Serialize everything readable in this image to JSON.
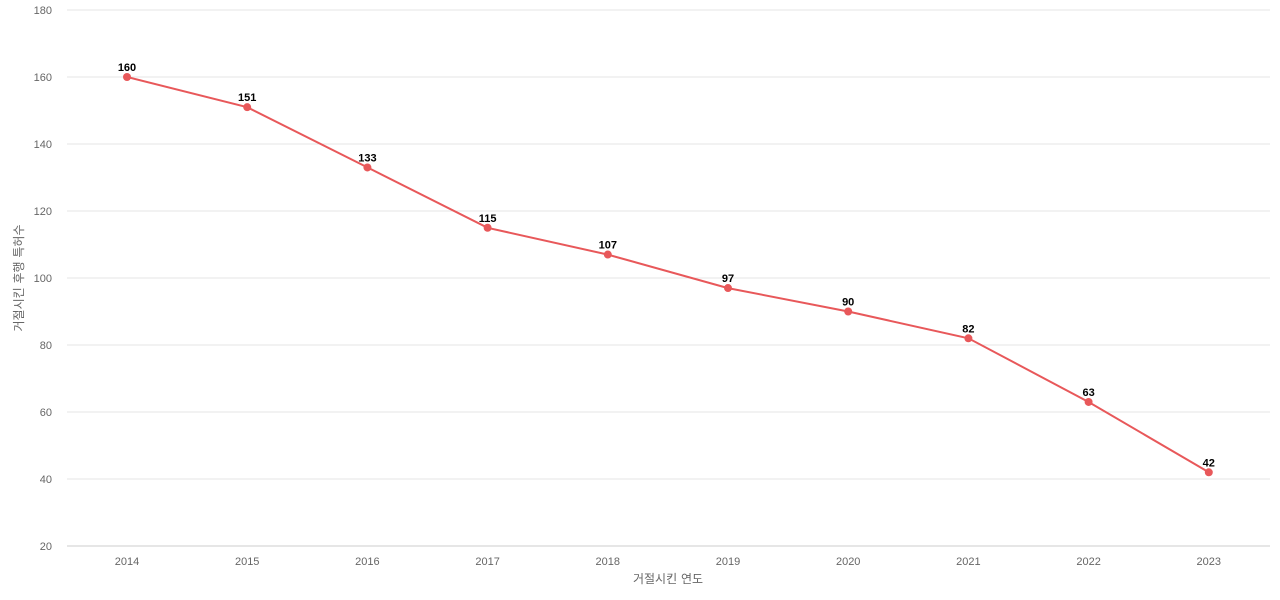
{
  "chart_data": {
    "type": "line",
    "title": "",
    "xlabel": "거절시킨 연도",
    "ylabel": "거절시킨 후행 특허수",
    "categories": [
      "2014",
      "2015",
      "2016",
      "2017",
      "2018",
      "2019",
      "2020",
      "2021",
      "2022",
      "2023"
    ],
    "series": [
      {
        "values": [
          160,
          151,
          133,
          115,
          107,
          97,
          90,
          82,
          63,
          42
        ]
      }
    ],
    "ylim": [
      20,
      180
    ],
    "yticks": [
      20,
      40,
      60,
      80,
      100,
      120,
      140,
      160,
      180
    ],
    "grid": true,
    "data_labels": true,
    "line_color": "#e8585a",
    "grid_color": "#e6e6e6",
    "text_color": "#666666"
  }
}
